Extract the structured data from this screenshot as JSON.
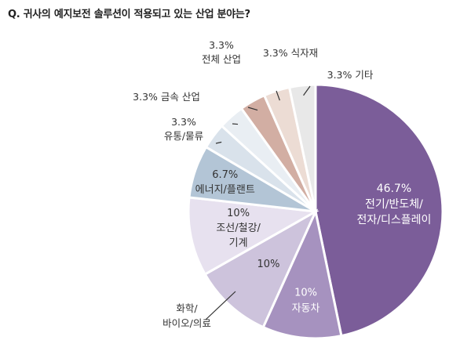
{
  "title": "Q. 귀사의 예지보전 솔루션이 적용되고 있는 산업 분야는?",
  "chart_data": {
    "type": "pie",
    "title": "Q. 귀사의 예지보전 솔루션이 적용되고 있는 산업 분야는?",
    "unit": "%",
    "slices": [
      {
        "label": "전기/반도체/전자/디스플레이",
        "value": 46.7,
        "display": "46.7%",
        "lines": [
          "전기/반도체/",
          "전자/디스플레이"
        ],
        "color": "#7b5d99"
      },
      {
        "label": "자동차",
        "value": 10,
        "display": "10%",
        "lines": [
          "자동차"
        ],
        "color": "#a692bf"
      },
      {
        "label": "화학/바이오/의료",
        "value": 10,
        "display": "10%",
        "lines": [
          "화학/",
          "바이오/의료"
        ],
        "color": "#cdc3dc"
      },
      {
        "label": "조선/철강/기계",
        "value": 10,
        "display": "10%",
        "lines": [
          "조선/철강/",
          "기계"
        ],
        "color": "#e7e1ef"
      },
      {
        "label": "에너지/플랜트",
        "value": 6.7,
        "display": "6.7%",
        "lines": [
          "에너지/플랜트"
        ],
        "color": "#b3c5d6"
      },
      {
        "label": "유통/물류",
        "value": 3.3,
        "display": "3.3%",
        "lines": [
          "유통/물류"
        ],
        "color": "#d9e2eb"
      },
      {
        "label": "금속 산업",
        "value": 3.3,
        "display": "3.3% 금속 산업",
        "lines": [
          "금속 산업"
        ],
        "color": "#e9eef3"
      },
      {
        "label": "전체 산업",
        "value": 3.3,
        "display": "3.3%",
        "lines": [
          "전체 산업"
        ],
        "color": "#d2aea3"
      },
      {
        "label": "식자재",
        "value": 3.3,
        "display": "3.3% 식자재",
        "lines": [
          "식자재"
        ],
        "color": "#ecdcd4"
      },
      {
        "label": "기타",
        "value": 3.3,
        "display": "3.3% 기타",
        "lines": [
          "기타"
        ],
        "color": "#e8e8e8"
      }
    ]
  }
}
